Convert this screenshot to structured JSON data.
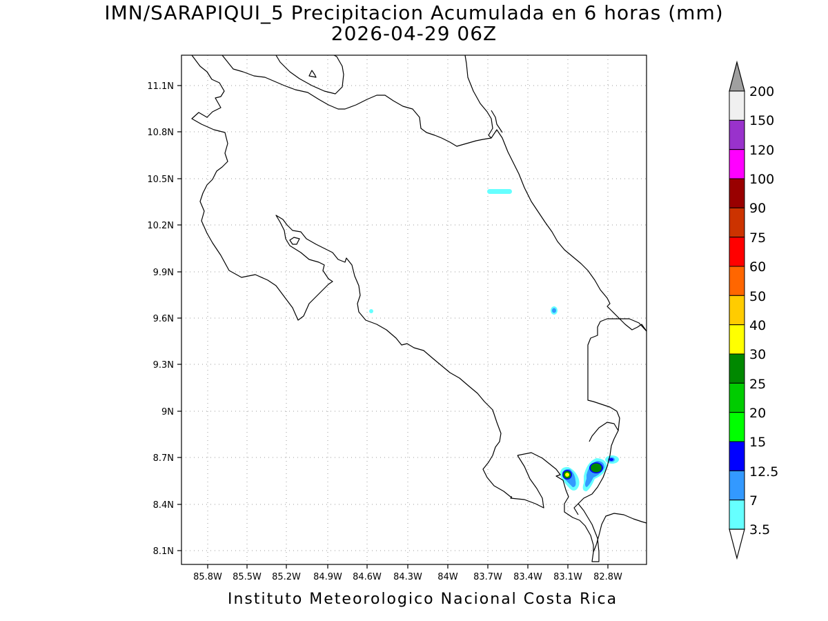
{
  "header": {
    "title": "IMN/SARAPIQUI_5 Precipitacion Acumulada en 6 horas (mm)",
    "subtitle": "2026-04-29 06Z"
  },
  "footer": {
    "credit": "Instituto Meteorologico Nacional Costa Rica"
  },
  "map": {
    "lat_ticks": [
      "11.1N",
      "10.8N",
      "10.5N",
      "10.2N",
      "9.9N",
      "9.6N",
      "9.3N",
      "9N",
      "8.7N",
      "8.4N",
      "8.1N"
    ],
    "lon_ticks": [
      "85.8W",
      "85.5W",
      "85.2W",
      "84.9W",
      "84.6W",
      "84.3W",
      "84W",
      "83.7W",
      "83.4W",
      "83.1W",
      "82.8W"
    ],
    "grid": "dotted",
    "coastline_color": "#000000"
  },
  "legend": {
    "labels": [
      "200",
      "150",
      "120",
      "100",
      "90",
      "75",
      "60",
      "50",
      "40",
      "30",
      "25",
      "20",
      "15",
      "12.5",
      "7",
      "3.5"
    ],
    "colors": [
      "#a0a0a0",
      "#f0f0f0",
      "#9932cc",
      "#ff00ff",
      "#990000",
      "#cc3300",
      "#ff0000",
      "#ff6600",
      "#ffcc00",
      "#ffff00",
      "#008800",
      "#00cc00",
      "#00ff00",
      "#0000ff",
      "#3399ff",
      "#66ffff",
      "#ffffff"
    ]
  }
}
